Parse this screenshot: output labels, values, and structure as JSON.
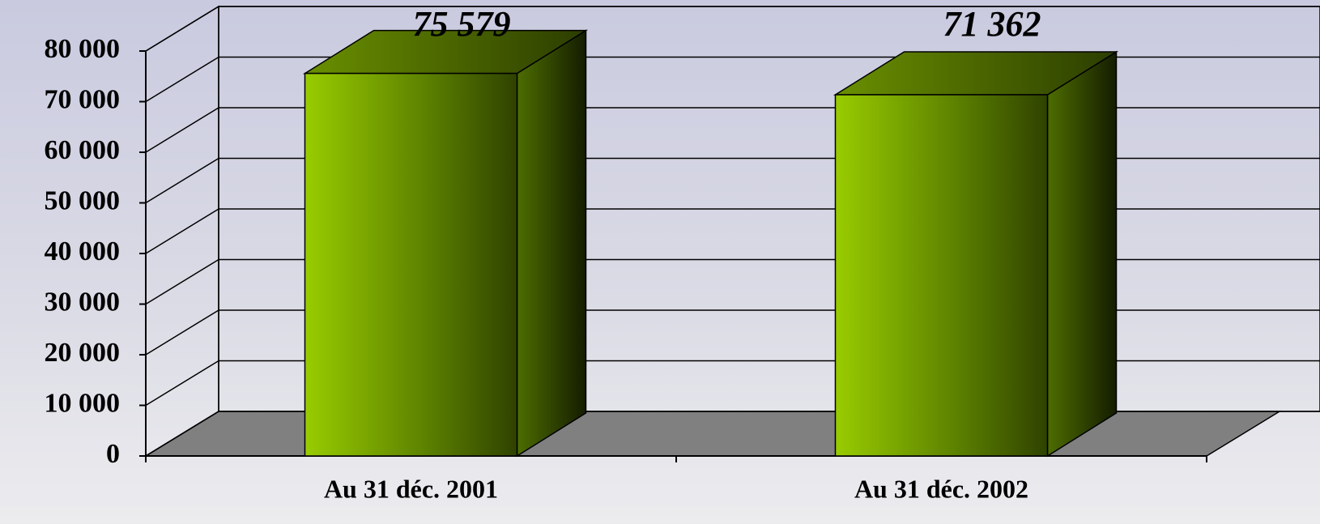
{
  "chart_data": {
    "type": "bar3d",
    "categories": [
      "Au 31 déc. 2001",
      "Au 31 déc. 2002"
    ],
    "values": [
      75579,
      71362
    ],
    "value_labels": [
      "75 579",
      "71 362"
    ],
    "color": "#99cc00",
    "ylim": [
      0,
      80000
    ],
    "yticks": [
      {
        "value": 0,
        "label": "0"
      },
      {
        "value": 10000,
        "label": "10 000"
      },
      {
        "value": 20000,
        "label": "20 000"
      },
      {
        "value": 30000,
        "label": "30 000"
      },
      {
        "value": 40000,
        "label": "40 000"
      },
      {
        "value": 50000,
        "label": "50 000"
      },
      {
        "value": 60000,
        "label": "60 000"
      },
      {
        "value": 70000,
        "label": "70 000"
      },
      {
        "value": 80000,
        "label": "80 000"
      }
    ],
    "grid": true
  }
}
